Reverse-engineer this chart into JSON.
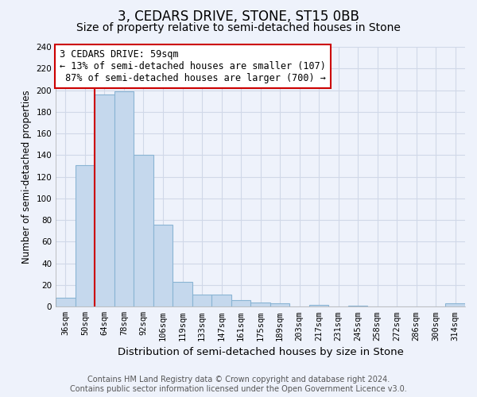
{
  "title": "3, CEDARS DRIVE, STONE, ST15 0BB",
  "subtitle": "Size of property relative to semi-detached houses in Stone",
  "xlabel": "Distribution of semi-detached houses by size in Stone",
  "ylabel": "Number of semi-detached properties",
  "bar_labels": [
    "36sqm",
    "50sqm",
    "64sqm",
    "78sqm",
    "92sqm",
    "106sqm",
    "119sqm",
    "133sqm",
    "147sqm",
    "161sqm",
    "175sqm",
    "189sqm",
    "203sqm",
    "217sqm",
    "231sqm",
    "245sqm",
    "258sqm",
    "272sqm",
    "286sqm",
    "300sqm",
    "314sqm"
  ],
  "bar_values": [
    8,
    131,
    196,
    199,
    140,
    76,
    23,
    11,
    11,
    6,
    4,
    3,
    0,
    2,
    0,
    1,
    0,
    0,
    0,
    0,
    3
  ],
  "bar_color": "#c5d8ed",
  "bar_edge_color": "#8ab4d4",
  "highlight_line_bar_index": 2,
  "annotation_line1": "3 CEDARS DRIVE: 59sqm",
  "annotation_line2": "← 13% of semi-detached houses are smaller (107)",
  "annotation_line3": " 87% of semi-detached houses are larger (700) →",
  "annotation_box_color": "#ffffff",
  "annotation_box_edge_color": "#cc0000",
  "ylim": [
    0,
    240
  ],
  "yticks": [
    0,
    20,
    40,
    60,
    80,
    100,
    120,
    140,
    160,
    180,
    200,
    220,
    240
  ],
  "footer_line1": "Contains HM Land Registry data © Crown copyright and database right 2024.",
  "footer_line2": "Contains public sector information licensed under the Open Government Licence v3.0.",
  "bg_color": "#eef2fb",
  "grid_color": "#d0d8e8",
  "title_fontsize": 12,
  "subtitle_fontsize": 10,
  "xlabel_fontsize": 9.5,
  "ylabel_fontsize": 8.5,
  "tick_fontsize": 7.5,
  "footer_fontsize": 7,
  "annotation_fontsize": 8.5
}
